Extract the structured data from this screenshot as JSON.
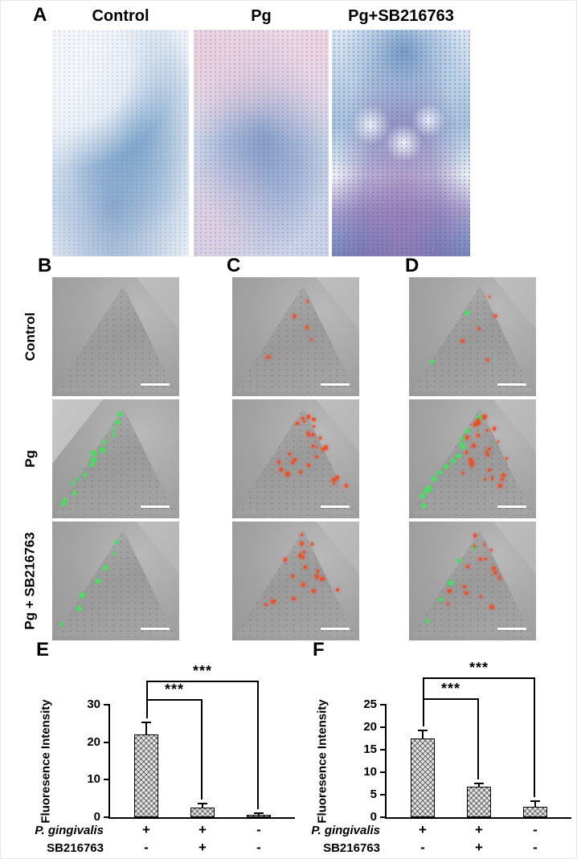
{
  "panels": {
    "A": {
      "label": "A",
      "columns": [
        "Control",
        "Pg",
        "Pg+SB216763"
      ]
    },
    "BCD": {
      "labels": [
        "B",
        "C",
        "D"
      ],
      "row_labels": [
        "Control",
        "Pg",
        "Pg + SB216763"
      ],
      "cells": [
        [
          {
            "green": 0,
            "red": 0
          },
          {
            "green": 0,
            "red": 5
          },
          {
            "green": 2,
            "red": 5
          }
        ],
        [
          {
            "green": 15,
            "red": 0
          },
          {
            "green": 0,
            "red": 28
          },
          {
            "green": 15,
            "red": 28
          }
        ],
        [
          {
            "green": 7,
            "red": 0
          },
          {
            "green": 0,
            "red": 18
          },
          {
            "green": 5,
            "red": 16
          }
        ]
      ]
    },
    "E": {
      "label": "E"
    },
    "F": {
      "label": "F"
    }
  },
  "palette": {
    "fluorescence_green": "#46e05e",
    "fluorescence_red": "#ee4f2a",
    "scale_bar": "#ffffff",
    "stain_blue": "#7fa8cf",
    "stain_purple": "#a98cc0"
  },
  "chart_data": [
    {
      "type": "bar",
      "panel": "E",
      "title": "",
      "ylabel": "Fluoresence Intensity",
      "ylim": [
        0,
        30
      ],
      "yticks": [
        0,
        10,
        20,
        30
      ],
      "values": [
        22,
        2.5,
        0.6
      ],
      "errors": [
        3.2,
        1.1,
        0.5
      ],
      "group_rows": [
        {
          "label": "P. gingivalis",
          "italic": true,
          "signs": [
            "+",
            "+",
            "-"
          ]
        },
        {
          "label": "SB216763",
          "italic": false,
          "signs": [
            "-",
            "+",
            "-"
          ]
        }
      ],
      "significance": [
        {
          "from": 0,
          "to": 1,
          "y": 31.5,
          "label": "***"
        },
        {
          "from": 0,
          "to": 2,
          "y": 36.5,
          "label": "***"
        }
      ],
      "bar_fill": "crosshatch",
      "legend": "none",
      "grid": false
    },
    {
      "type": "bar",
      "panel": "F",
      "title": "",
      "ylabel": "Fluoresence Intensity",
      "ylim": [
        0,
        25
      ],
      "yticks": [
        0,
        5,
        10,
        15,
        20,
        25
      ],
      "values": [
        17.5,
        6.8,
        2.3
      ],
      "errors": [
        1.8,
        0.7,
        1.2
      ],
      "group_rows": [
        {
          "label": "P. gingivalis",
          "italic": true,
          "signs": [
            "+",
            "+",
            "-"
          ]
        },
        {
          "label": "SB216763",
          "italic": false,
          "signs": [
            "-",
            "+",
            "-"
          ]
        }
      ],
      "significance": [
        {
          "from": 0,
          "to": 1,
          "y": 26.5,
          "label": "***"
        },
        {
          "from": 0,
          "to": 2,
          "y": 31.0,
          "label": "***"
        }
      ],
      "bar_fill": "crosshatch",
      "legend": "none",
      "grid": false
    }
  ]
}
